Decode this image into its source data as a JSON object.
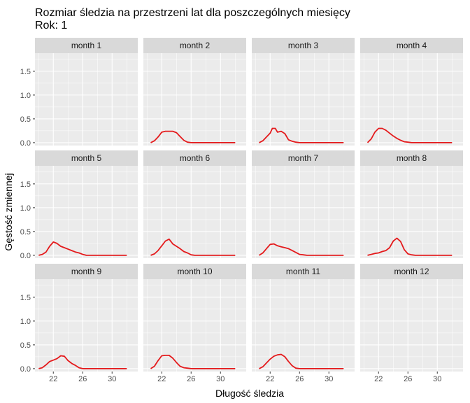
{
  "chart_data": {
    "type": "line",
    "title": "Rozmiar śledzia na przestrzeni lat dla poszczególnych miesięcy",
    "subtitle": "Rok: 1",
    "xlabel": "Długość śledzia",
    "ylabel": "Gęstość zmiennej",
    "xlim": [
      19.5,
      33.5
    ],
    "ylim": [
      -0.06,
      1.88
    ],
    "xticks": [
      22,
      26,
      30
    ],
    "yticks": [
      0.0,
      0.5,
      1.0,
      1.5
    ],
    "ytick_labels": [
      "0.0",
      "0.5",
      "1.0",
      "1.5"
    ],
    "line_color": "#e41a1c",
    "grid": true,
    "panels": [
      {
        "label": "month 1",
        "x": [],
        "y": []
      },
      {
        "label": "month 2",
        "x": [
          20.5,
          21.0,
          21.5,
          22.0,
          22.5,
          23.0,
          23.5,
          24.0,
          24.5,
          25.0,
          25.5,
          26.0,
          27.0,
          28.0,
          29.0,
          30.0,
          31.0,
          32.0
        ],
        "y": [
          0.0,
          0.04,
          0.12,
          0.22,
          0.24,
          0.24,
          0.24,
          0.21,
          0.13,
          0.05,
          0.01,
          0.0,
          0.0,
          0.0,
          0.0,
          0.0,
          0.0,
          0.0
        ]
      },
      {
        "label": "month 3",
        "x": [
          20.5,
          21.0,
          21.5,
          22.0,
          22.3,
          22.7,
          23.0,
          23.5,
          24.0,
          24.5,
          25.0,
          25.5,
          26.0,
          27.0,
          28.0,
          29.0,
          30.0,
          31.0,
          32.0
        ],
        "y": [
          0.0,
          0.04,
          0.12,
          0.2,
          0.3,
          0.3,
          0.22,
          0.24,
          0.19,
          0.06,
          0.03,
          0.01,
          0.0,
          0.0,
          0.0,
          0.0,
          0.0,
          0.0,
          0.0
        ]
      },
      {
        "label": "month 4",
        "x": [
          20.5,
          21.0,
          21.5,
          22.0,
          22.5,
          23.0,
          23.5,
          24.0,
          24.5,
          25.0,
          25.5,
          26.0,
          26.5,
          27.0,
          28.0,
          29.0,
          30.0,
          31.0,
          32.0
        ],
        "y": [
          0.0,
          0.08,
          0.22,
          0.3,
          0.3,
          0.26,
          0.2,
          0.14,
          0.09,
          0.05,
          0.02,
          0.01,
          0.0,
          0.0,
          0.0,
          0.0,
          0.0,
          0.0,
          0.0
        ]
      },
      {
        "label": "month 5",
        "x": [
          20.0,
          20.5,
          21.0,
          21.5,
          22.0,
          22.5,
          23.0,
          23.5,
          24.0,
          24.5,
          25.0,
          25.5,
          26.0,
          26.5,
          27.0,
          28.0,
          29.0,
          30.0,
          31.0,
          32.0
        ],
        "y": [
          0.0,
          0.02,
          0.07,
          0.19,
          0.28,
          0.25,
          0.19,
          0.16,
          0.13,
          0.1,
          0.07,
          0.05,
          0.02,
          0.0,
          0.0,
          0.0,
          0.0,
          0.0,
          0.0,
          0.0
        ]
      },
      {
        "label": "month 6",
        "x": [
          20.5,
          21.0,
          21.5,
          22.0,
          22.5,
          23.0,
          23.5,
          24.0,
          24.5,
          25.0,
          25.5,
          26.0,
          26.5,
          27.0,
          28.0,
          29.0,
          30.0,
          31.0,
          32.0
        ],
        "y": [
          0.0,
          0.03,
          0.1,
          0.2,
          0.3,
          0.34,
          0.24,
          0.19,
          0.14,
          0.08,
          0.05,
          0.01,
          0.0,
          0.0,
          0.0,
          0.0,
          0.0,
          0.0,
          0.0
        ]
      },
      {
        "label": "month 7",
        "x": [
          20.5,
          21.0,
          21.5,
          22.0,
          22.5,
          23.0,
          23.5,
          24.0,
          24.5,
          25.0,
          25.5,
          26.0,
          26.5,
          27.0,
          28.0,
          29.0,
          30.0,
          31.0,
          32.0
        ],
        "y": [
          0.0,
          0.05,
          0.14,
          0.23,
          0.24,
          0.2,
          0.18,
          0.16,
          0.14,
          0.1,
          0.06,
          0.02,
          0.01,
          0.0,
          0.0,
          0.0,
          0.0,
          0.0,
          0.0
        ]
      },
      {
        "label": "month 8",
        "x": [
          20.5,
          21.0,
          21.5,
          22.0,
          22.5,
          23.0,
          23.5,
          24.0,
          24.5,
          25.0,
          25.5,
          26.0,
          26.5,
          27.0,
          28.0,
          29.0,
          30.0,
          31.0,
          32.0
        ],
        "y": [
          0.0,
          0.02,
          0.04,
          0.05,
          0.08,
          0.1,
          0.16,
          0.3,
          0.36,
          0.29,
          0.12,
          0.03,
          0.01,
          0.0,
          0.0,
          0.0,
          0.0,
          0.0,
          0.0
        ]
      },
      {
        "label": "month 9",
        "x": [
          20.0,
          20.5,
          21.0,
          21.5,
          22.0,
          22.5,
          23.0,
          23.5,
          24.0,
          24.5,
          25.0,
          25.5,
          26.0,
          26.5,
          27.0,
          28.0,
          29.0,
          30.0,
          31.0,
          32.0
        ],
        "y": [
          0.0,
          0.02,
          0.08,
          0.15,
          0.18,
          0.21,
          0.27,
          0.26,
          0.17,
          0.11,
          0.07,
          0.02,
          0.0,
          0.0,
          0.0,
          0.0,
          0.0,
          0.0,
          0.0,
          0.0
        ]
      },
      {
        "label": "month 10",
        "x": [
          20.5,
          21.0,
          21.5,
          22.0,
          22.5,
          23.0,
          23.5,
          24.0,
          24.5,
          25.0,
          25.5,
          26.0,
          27.0,
          28.0,
          29.0,
          30.0,
          31.0,
          32.0
        ],
        "y": [
          0.0,
          0.05,
          0.17,
          0.27,
          0.28,
          0.28,
          0.22,
          0.13,
          0.05,
          0.02,
          0.01,
          0.0,
          0.0,
          0.0,
          0.0,
          0.0,
          0.0,
          0.0
        ]
      },
      {
        "label": "month 11",
        "x": [
          20.5,
          21.0,
          21.5,
          22.0,
          22.5,
          23.0,
          23.5,
          24.0,
          24.5,
          25.0,
          25.5,
          26.0,
          27.0,
          28.0,
          29.0,
          30.0,
          31.0,
          32.0
        ],
        "y": [
          0.0,
          0.04,
          0.12,
          0.2,
          0.26,
          0.29,
          0.3,
          0.25,
          0.15,
          0.06,
          0.01,
          0.0,
          0.0,
          0.0,
          0.0,
          0.0,
          0.0,
          0.0
        ]
      },
      {
        "label": "month 12",
        "x": [],
        "y": []
      }
    ]
  }
}
